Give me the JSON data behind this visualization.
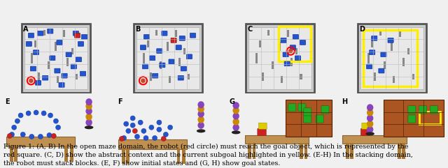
{
  "figsize": [
    6.4,
    2.41
  ],
  "dpi": 100,
  "bg_color": "#f0f0f0",
  "caption_line1": "Figure 1: (A, B) In the open maze domain, the robot (red circle) must reach the goal object, which is represented by the",
  "caption_line2": "red square. (C, D) show the abstract context and the current subgoal highlighted in yellow. (E-H) In the stacking domain,",
  "caption_line3": "the robot must stack blocks. (E, F) show initial states and (G, H) show goal states.",
  "panel_labels": [
    "A",
    "B",
    "C",
    "D",
    "E",
    "F",
    "G",
    "H"
  ],
  "label_fontsize": 7,
  "caption_fontsize": 6.8,
  "maze_bg": "#e8e8e8",
  "maze_wall": "#808080",
  "blue_block": "#2255cc",
  "red_block": "#cc2222",
  "green_block": "#22aa22",
  "yellow_border": "#ffee00",
  "robot_color": "#cc8800",
  "robot_purple": "#8844bb",
  "table_color": "#c8a060",
  "shelf_color": "#b06020",
  "panel_sep_color": "#888888"
}
